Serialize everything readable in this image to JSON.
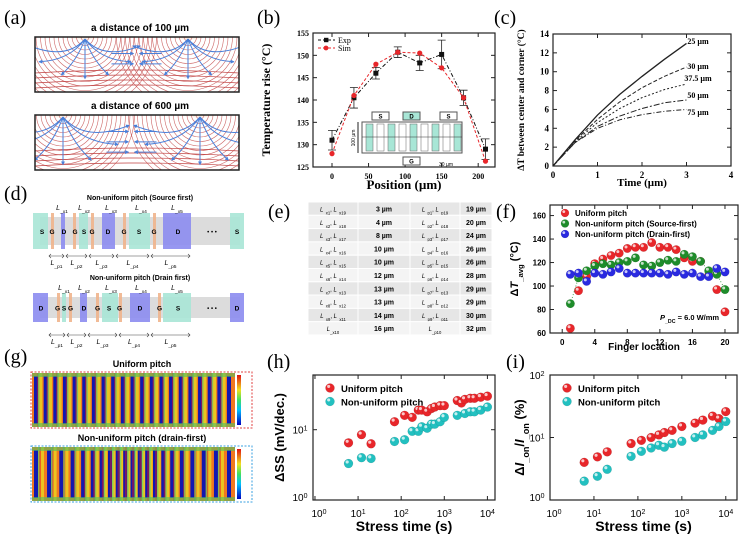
{
  "panel_labels": [
    "(a)",
    "(b)",
    "(c)",
    "(d)",
    "(e)",
    "(f)",
    "(g)",
    "(h)",
    "(i)"
  ],
  "colors": {
    "red": "#e8262a",
    "green": "#1e8c2a",
    "blue": "#2a2ae0",
    "cyan": "#22c0c0",
    "source": "#a8e6d6",
    "gate": "#f0b48c",
    "drain": "#8c8cf0",
    "contour": "#c04040",
    "flow": "#4a7fd8"
  },
  "panel_a": {
    "titles": [
      "a distance of 100 µm",
      "a distance of 600 µm"
    ]
  },
  "panel_d": {
    "ellipsis": "• • •",
    "rows": [
      {
        "title": "Non-uniform pitch (Source first)",
        "blocks": [
          "S",
          "G",
          "D",
          "G",
          "S",
          "G",
          "D",
          "G",
          "S",
          "G",
          "D",
          "S"
        ],
        "top_labels": [
          "L_x1",
          "L_x2",
          "L_x3",
          "L_x4",
          "L_x5"
        ],
        "bottom_labels": [
          "L_p1",
          "L_p2",
          "L_p3",
          "L_p4",
          "L_p5"
        ]
      },
      {
        "title": "Non-uniform pitch (Drain first)",
        "blocks": [
          "D",
          "G",
          "S",
          "G",
          "D",
          "G",
          "S",
          "G",
          "D",
          "G",
          "S",
          "D"
        ],
        "top_labels": [
          "L_x1",
          "L_x2",
          "L_x3",
          "L_x4",
          "L_x5"
        ],
        "bottom_labels": [
          "L_p1",
          "L_p2",
          "L_p3",
          "L_p4",
          "L_p5"
        ]
      }
    ]
  },
  "panel_e": {
    "rows": [
      [
        "L_x1, L_x19",
        "3 µm",
        "L_p1, L_p19",
        "19 µm"
      ],
      [
        "L_x2, L_x18",
        "4 µm",
        "L_p2, L_p18",
        "20 µm"
      ],
      [
        "L_x3, L_x17",
        "8 µm",
        "L_p3, L_p17",
        "24 µm"
      ],
      [
        "L_x4, L_x16",
        "10 µm",
        "L_p4, L_p16",
        "26 µm"
      ],
      [
        "L_x5, L_x15",
        "10 µm",
        "L_p5, L_p15",
        "26 µm"
      ],
      [
        "L_x6, L_x14",
        "12 µm",
        "L_p6, L_p14",
        "28 µm"
      ],
      [
        "L_x7, L_x13",
        "13 µm",
        "L_p7, L_p13",
        "29 µm"
      ],
      [
        "L_x8, L_x12",
        "13 µm",
        "L_p8, L_p12",
        "29 µm"
      ],
      [
        "L_x9, L_x11",
        "14 µm",
        "L_p9, L_p11",
        "30 µm"
      ],
      [
        "L_x10",
        "16 µm",
        "L_p10",
        "32 µm"
      ]
    ]
  },
  "panel_g": {
    "titles": [
      "Uniform pitch",
      "Non-uniform pitch (drain-first)"
    ]
  },
  "chart_data": [
    {
      "id": "b",
      "type": "line",
      "xlabel": "Position (µm)",
      "ylabel": "Temperature rise (°C)",
      "xlim": [
        -26,
        223
      ],
      "ylim": [
        125,
        155
      ],
      "xticks": [
        0,
        50,
        100,
        150,
        200
      ],
      "yticks": [
        125,
        130,
        135,
        140,
        145,
        150,
        155
      ],
      "legend": "top-left",
      "inset_labels": {
        "boxes": [
          "S",
          "D",
          "S",
          "G"
        ],
        "height": "100 µm",
        "spacing": "30 µm"
      },
      "series": [
        {
          "name": "Exp",
          "color": "#111111",
          "x": [
            0,
            30,
            60,
            90,
            120,
            150,
            180,
            210
          ],
          "y": [
            131,
            140.5,
            146,
            150.7,
            148.3,
            150.2,
            140.5,
            129
          ],
          "err": [
            2.2,
            2.3,
            1.3,
            1.2,
            1.7,
            3.2,
            1.7,
            2.3
          ]
        },
        {
          "name": "Sim",
          "color": "#e8262a",
          "x": [
            0,
            30,
            60,
            90,
            120,
            150,
            180,
            210
          ],
          "y": [
            128,
            141,
            148,
            150.7,
            150.5,
            147.2,
            140.5,
            126.3
          ]
        }
      ]
    },
    {
      "id": "c",
      "type": "line",
      "xlabel": "Time (µm)",
      "ylabel": "ΔT between center and corner (°C)",
      "xlim": [
        0,
        4
      ],
      "ylim": [
        0,
        14
      ],
      "xticks": [
        0,
        1,
        2,
        3,
        4
      ],
      "yticks": [
        0,
        2,
        4,
        6,
        8,
        10,
        12,
        14
      ],
      "x": [
        0,
        0.5,
        1,
        1.5,
        2,
        2.5,
        3
      ],
      "series": [
        {
          "name": "25 µm",
          "y": [
            0,
            2.8,
            5.4,
            7.6,
            9.5,
            11.3,
            13
          ]
        },
        {
          "name": "30 µm",
          "y": [
            0,
            2.7,
            4.95,
            6.8,
            8.3,
            9.5,
            10.5
          ]
        },
        {
          "name": "37.5 µm",
          "y": [
            0,
            2.6,
            4.6,
            6.1,
            7.25,
            8.1,
            8.7
          ]
        },
        {
          "name": "50 µm",
          "y": [
            0,
            2.5,
            4.2,
            5.3,
            6.1,
            6.7,
            7
          ]
        },
        {
          "name": "75 µm",
          "y": [
            0,
            2.5,
            4.0,
            4.9,
            5.45,
            5.8,
            6.0
          ]
        }
      ]
    },
    {
      "id": "f",
      "type": "scatter",
      "xlabel": "Finger location",
      "ylabel": "ΔT_avg (°C)",
      "xlim": [
        -1.5,
        21.6
      ],
      "ylim": [
        60,
        169
      ],
      "xticks": [
        0,
        4,
        8,
        12,
        16,
        20
      ],
      "yticks": [
        60,
        80,
        100,
        120,
        140,
        160
      ],
      "legend": "top-left",
      "annotation": "P_DC = 6.0 W/mm",
      "x": [
        1,
        2,
        3,
        4,
        5,
        6,
        7,
        8,
        9,
        10,
        11,
        12,
        13,
        14,
        15,
        16,
        17,
        18,
        19,
        20
      ],
      "series": [
        {
          "name": "Uniform pitch",
          "color": "#e8262a",
          "y": [
            64,
            96,
            108,
            119,
            123,
            126,
            128,
            132,
            133,
            133,
            137,
            133,
            133,
            131,
            124,
            121,
            121,
            109,
            97,
            78
          ]
        },
        {
          "name": "Non-uniform  pitch (Source-first)",
          "color": "#1e8c2a",
          "y": [
            85,
            107,
            113,
            117,
            119,
            118,
            120,
            121,
            124,
            118,
            117,
            120,
            122,
            121,
            127,
            125,
            121,
            113,
            110,
            97
          ]
        },
        {
          "name": "Non-uniform pitch (Drain-first)",
          "color": "#2a2ae0",
          "y": [
            110,
            111,
            104,
            111,
            110,
            112,
            115,
            111,
            111,
            111,
            111,
            111,
            110,
            112,
            110,
            111,
            108,
            108,
            115,
            112
          ]
        }
      ]
    },
    {
      "id": "h",
      "type": "scatter",
      "xscale": "log",
      "yscale": "log",
      "xlabel": "Stress time (s)",
      "ylabel": "ΔSS (mV/dec.)",
      "xlim": [
        0.9,
        15000
      ],
      "ylim": [
        1,
        60
      ],
      "xticks": [
        1,
        10,
        100,
        1000,
        10000
      ],
      "yticks": [
        1,
        10
      ],
      "legend": "top-left",
      "series": [
        {
          "name": "Uniform pitch",
          "color": "#e8262a",
          "x": [
            6,
            12,
            20,
            70,
            120,
            180,
            250,
            300,
            400,
            500,
            600,
            800,
            1000,
            2000,
            2500,
            3000,
            4000,
            5000,
            7000,
            10000
          ],
          "y": [
            6.5,
            8.5,
            6.3,
            13,
            16,
            15,
            19,
            19,
            18,
            20,
            21,
            22,
            22,
            26,
            24,
            27,
            28,
            28,
            29,
            30
          ]
        },
        {
          "name": "Non-uniform pitch",
          "color": "#22c0c0",
          "x": [
            6,
            12,
            20,
            70,
            120,
            180,
            250,
            300,
            400,
            500,
            600,
            800,
            1000,
            2000,
            3000,
            4000,
            5000,
            7000,
            10000
          ],
          "y": [
            3.3,
            4,
            3.9,
            6.8,
            7.2,
            9.5,
            9.5,
            11,
            10.5,
            12,
            12,
            13,
            15,
            16,
            17,
            18,
            18,
            19,
            21
          ]
        }
      ]
    },
    {
      "id": "i",
      "type": "scatter",
      "xscale": "log",
      "yscale": "log",
      "xlabel": "Stress time (s)",
      "ylabel": "ΔI_on/I_on (%)",
      "xlim": [
        1,
        18000
      ],
      "ylim": [
        1,
        100
      ],
      "xticks": [
        1,
        10,
        100,
        1000,
        10000
      ],
      "yticks": [
        1,
        10,
        100
      ],
      "legend": "top-left",
      "series": [
        {
          "name": "Uniform pitch",
          "color": "#e8262a",
          "x": [
            6,
            12,
            20,
            70,
            120,
            200,
            300,
            400,
            600,
            1000,
            2000,
            3000,
            5000,
            7000,
            10000
          ],
          "y": [
            4,
            4.9,
            5.9,
            8,
            9,
            10,
            11,
            12,
            13,
            15,
            17,
            19,
            22,
            20,
            26
          ]
        },
        {
          "name": "Non-uniform pitch",
          "color": "#22c0c0",
          "x": [
            6,
            12,
            20,
            70,
            120,
            200,
            300,
            400,
            600,
            1000,
            2000,
            3000,
            5000,
            7000,
            10000
          ],
          "y": [
            2,
            2.4,
            3.1,
            5,
            6,
            6.8,
            7.5,
            7,
            8,
            8.7,
            10,
            11,
            13,
            15,
            18
          ]
        }
      ]
    }
  ]
}
